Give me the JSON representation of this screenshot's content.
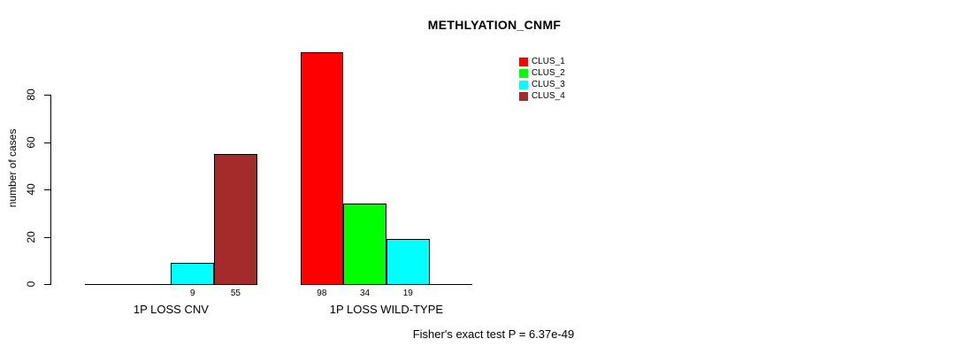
{
  "chart_data": {
    "type": "bar",
    "title": "METHLYATION_CNMF",
    "ylabel": "number of cases",
    "xlabel": "",
    "ylim": [
      0,
      98
    ],
    "yticks": [
      0,
      20,
      40,
      60,
      80
    ],
    "grid": false,
    "bar_borders": true,
    "zero_bars_drawn_flat": true,
    "legend_position": "top-right",
    "categories": [
      "1P LOSS CNV",
      "1P LOSS WILD-TYPE"
    ],
    "series": [
      {
        "name": "CLUS_1",
        "color": "#FF0000",
        "values": [
          0,
          98
        ]
      },
      {
        "name": "CLUS_2",
        "color": "#00FF00",
        "values": [
          0,
          34
        ]
      },
      {
        "name": "CLUS_3",
        "color": "#00FFFF",
        "values": [
          9,
          19
        ]
      },
      {
        "name": "CLUS_4",
        "color": "#A52A2A",
        "values": [
          55,
          0
        ]
      }
    ],
    "bar_value_labels": {
      "1P LOSS CNV": [
        "9",
        "55"
      ],
      "1P LOSS WILD-TYPE": [
        "98",
        "34",
        "19"
      ],
      "rule": "value shown under each non-zero bar"
    },
    "annotation": "Fisher's exact test P = 6.37e-49"
  }
}
